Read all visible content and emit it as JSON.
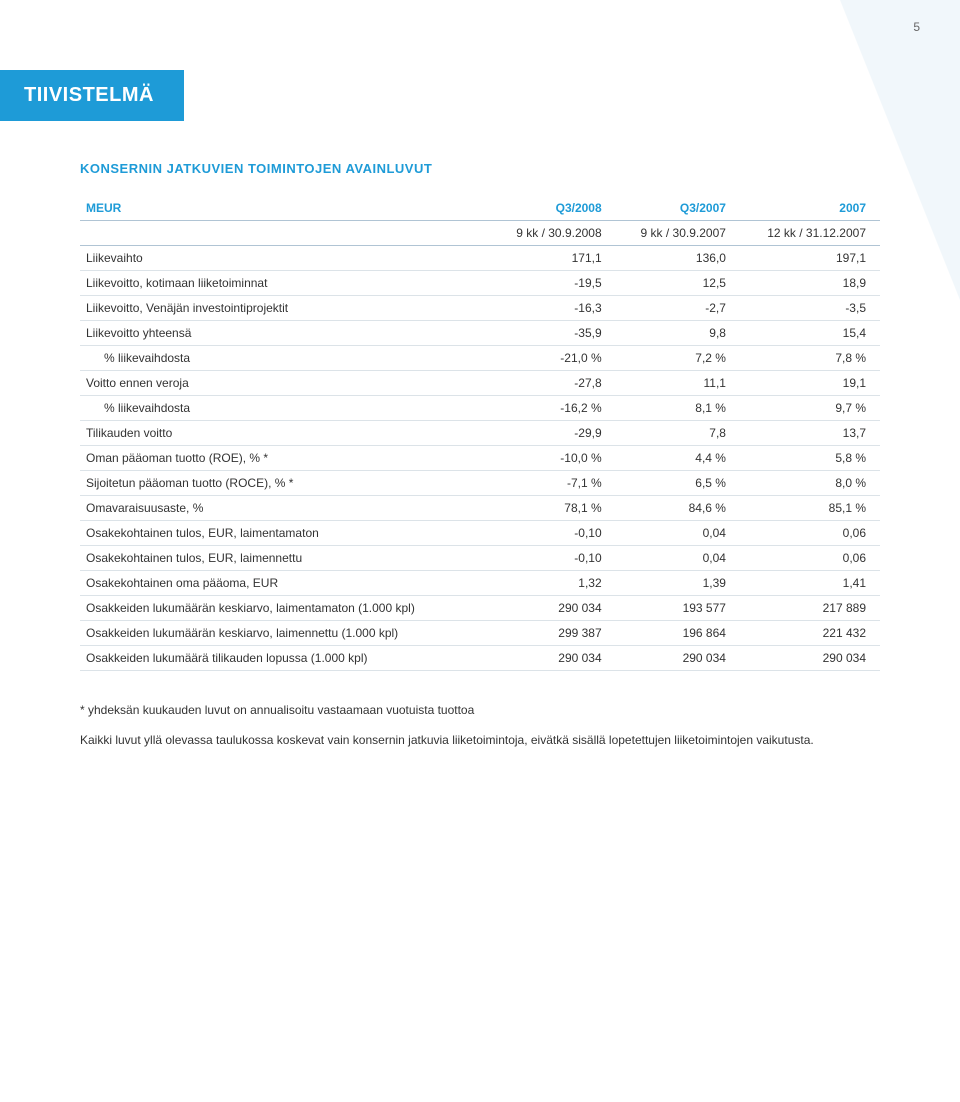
{
  "page_number": "5",
  "title": "TIIVISTELMÄ",
  "subheading": "KONSERNIN JATKUVIEN TOIMINTOJEN AVAINLUVUT",
  "colors": {
    "brand": "#1e9bd7",
    "title_bg": "#1e9bd7",
    "title_fg": "#ffffff",
    "table_header_fg": "#1e9bd7",
    "row_border": "#dce3e8",
    "header_border": "#b0c4d4"
  },
  "table": {
    "header1": {
      "c0": "MEUR",
      "c1": "Q3/2008",
      "c2": "Q3/2007",
      "c3": "2007"
    },
    "header2": {
      "c0": "",
      "c1": "9 kk / 30.9.2008",
      "c2": "9 kk / 30.9.2007",
      "c3": "12 kk / 31.12.2007"
    },
    "rows": [
      {
        "label": "Liikevaihto",
        "indent": false,
        "c1": "171,1",
        "c2": "136,0",
        "c3": "197,1"
      },
      {
        "label": "Liikevoitto, kotimaan liiketoiminnat",
        "indent": false,
        "c1": "-19,5",
        "c2": "12,5",
        "c3": "18,9"
      },
      {
        "label": "Liikevoitto, Venäjän investointiprojektit",
        "indent": false,
        "c1": "-16,3",
        "c2": "-2,7",
        "c3": "-3,5"
      },
      {
        "label": "Liikevoitto yhteensä",
        "indent": false,
        "c1": "-35,9",
        "c2": "9,8",
        "c3": "15,4"
      },
      {
        "label": "% liikevaihdosta",
        "indent": true,
        "c1": "-21,0 %",
        "c2": "7,2 %",
        "c3": "7,8 %"
      },
      {
        "label": "Voitto ennen veroja",
        "indent": false,
        "c1": "-27,8",
        "c2": "11,1",
        "c3": "19,1"
      },
      {
        "label": "% liikevaihdosta",
        "indent": true,
        "c1": "-16,2 %",
        "c2": "8,1 %",
        "c3": "9,7 %"
      },
      {
        "label": "Tilikauden voitto",
        "indent": false,
        "c1": "-29,9",
        "c2": "7,8",
        "c3": "13,7"
      },
      {
        "label": "Oman pääoman tuotto (ROE), % *",
        "indent": false,
        "c1": "-10,0 %",
        "c2": "4,4 %",
        "c3": "5,8 %"
      },
      {
        "label": "Sijoitetun pääoman tuotto (ROCE), % *",
        "indent": false,
        "c1": "-7,1 %",
        "c2": "6,5 %",
        "c3": "8,0 %"
      },
      {
        "label": "Omavaraisuusaste, %",
        "indent": false,
        "c1": "78,1 %",
        "c2": "84,6 %",
        "c3": "85,1 %"
      },
      {
        "label": "Osakekohtainen tulos, EUR, laimentamaton",
        "indent": false,
        "c1": "-0,10",
        "c2": "0,04",
        "c3": "0,06"
      },
      {
        "label": "Osakekohtainen tulos, EUR, laimennettu",
        "indent": false,
        "c1": "-0,10",
        "c2": "0,04",
        "c3": "0,06"
      },
      {
        "label": "Osakekohtainen oma pääoma, EUR",
        "indent": false,
        "c1": "1,32",
        "c2": "1,39",
        "c3": "1,41"
      },
      {
        "label": "Osakkeiden lukumäärän keskiarvo, laimentamaton (1.000 kpl)",
        "indent": false,
        "c1": "290 034",
        "c2": "193 577",
        "c3": "217 889"
      },
      {
        "label": "Osakkeiden lukumäärän keskiarvo, laimennettu (1.000 kpl)",
        "indent": false,
        "c1": "299 387",
        "c2": "196 864",
        "c3": "221 432"
      },
      {
        "label": "Osakkeiden lukumäärä tilikauden lopussa (1.000 kpl)",
        "indent": false,
        "c1": "290 034",
        "c2": "290 034",
        "c3": "290 034"
      }
    ]
  },
  "footnotes": {
    "n1": "* yhdeksän kuukauden luvut on annualisoitu vastaamaan vuotuista tuottoa",
    "n2": "Kaikki luvut yllä olevassa taulukossa koskevat vain konsernin jatkuvia liiketoimintoja, eivätkä sisällä lopetettujen liiketoimintojen vaikutusta."
  }
}
